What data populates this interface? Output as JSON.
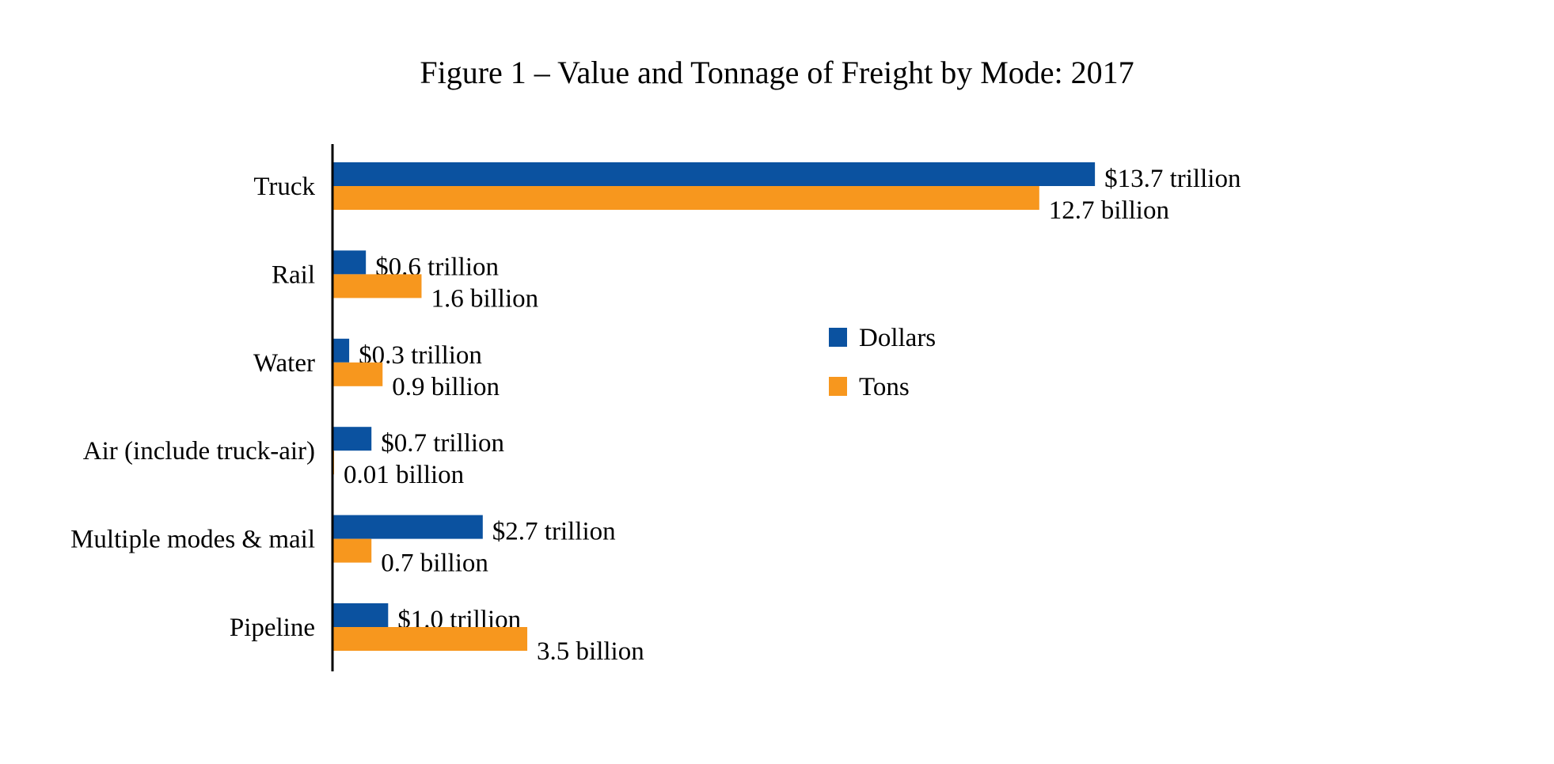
{
  "chart_data": {
    "type": "bar",
    "orientation": "horizontal",
    "title": "Figure 1 – Value and Tonnage of Freight by Mode: 2017",
    "categories": [
      "Truck",
      "Rail",
      "Water",
      "Air (include truck-air)",
      "Multiple modes & mail",
      "Pipeline"
    ],
    "series": [
      {
        "name": "Dollars",
        "color": "#0B52A0",
        "values": [
          13.7,
          0.6,
          0.3,
          0.7,
          2.7,
          1.0
        ],
        "labels": [
          "$13.7 trillion",
          "$0.6 trillion",
          "$0.3 trillion",
          "$0.7 trillion",
          "$2.7 trillion",
          "$1.0 trillion"
        ]
      },
      {
        "name": "Tons",
        "color": "#F7971E",
        "values": [
          12.7,
          1.6,
          0.9,
          0.01,
          0.7,
          3.5
        ],
        "labels": [
          "12.7 billion",
          "1.6 billion",
          "0.9 billion",
          "0.01 billion",
          "0.7 billion",
          "3.5 billion"
        ]
      }
    ],
    "xlabel": "",
    "ylabel": "",
    "grid": false,
    "legend_position": "right"
  }
}
